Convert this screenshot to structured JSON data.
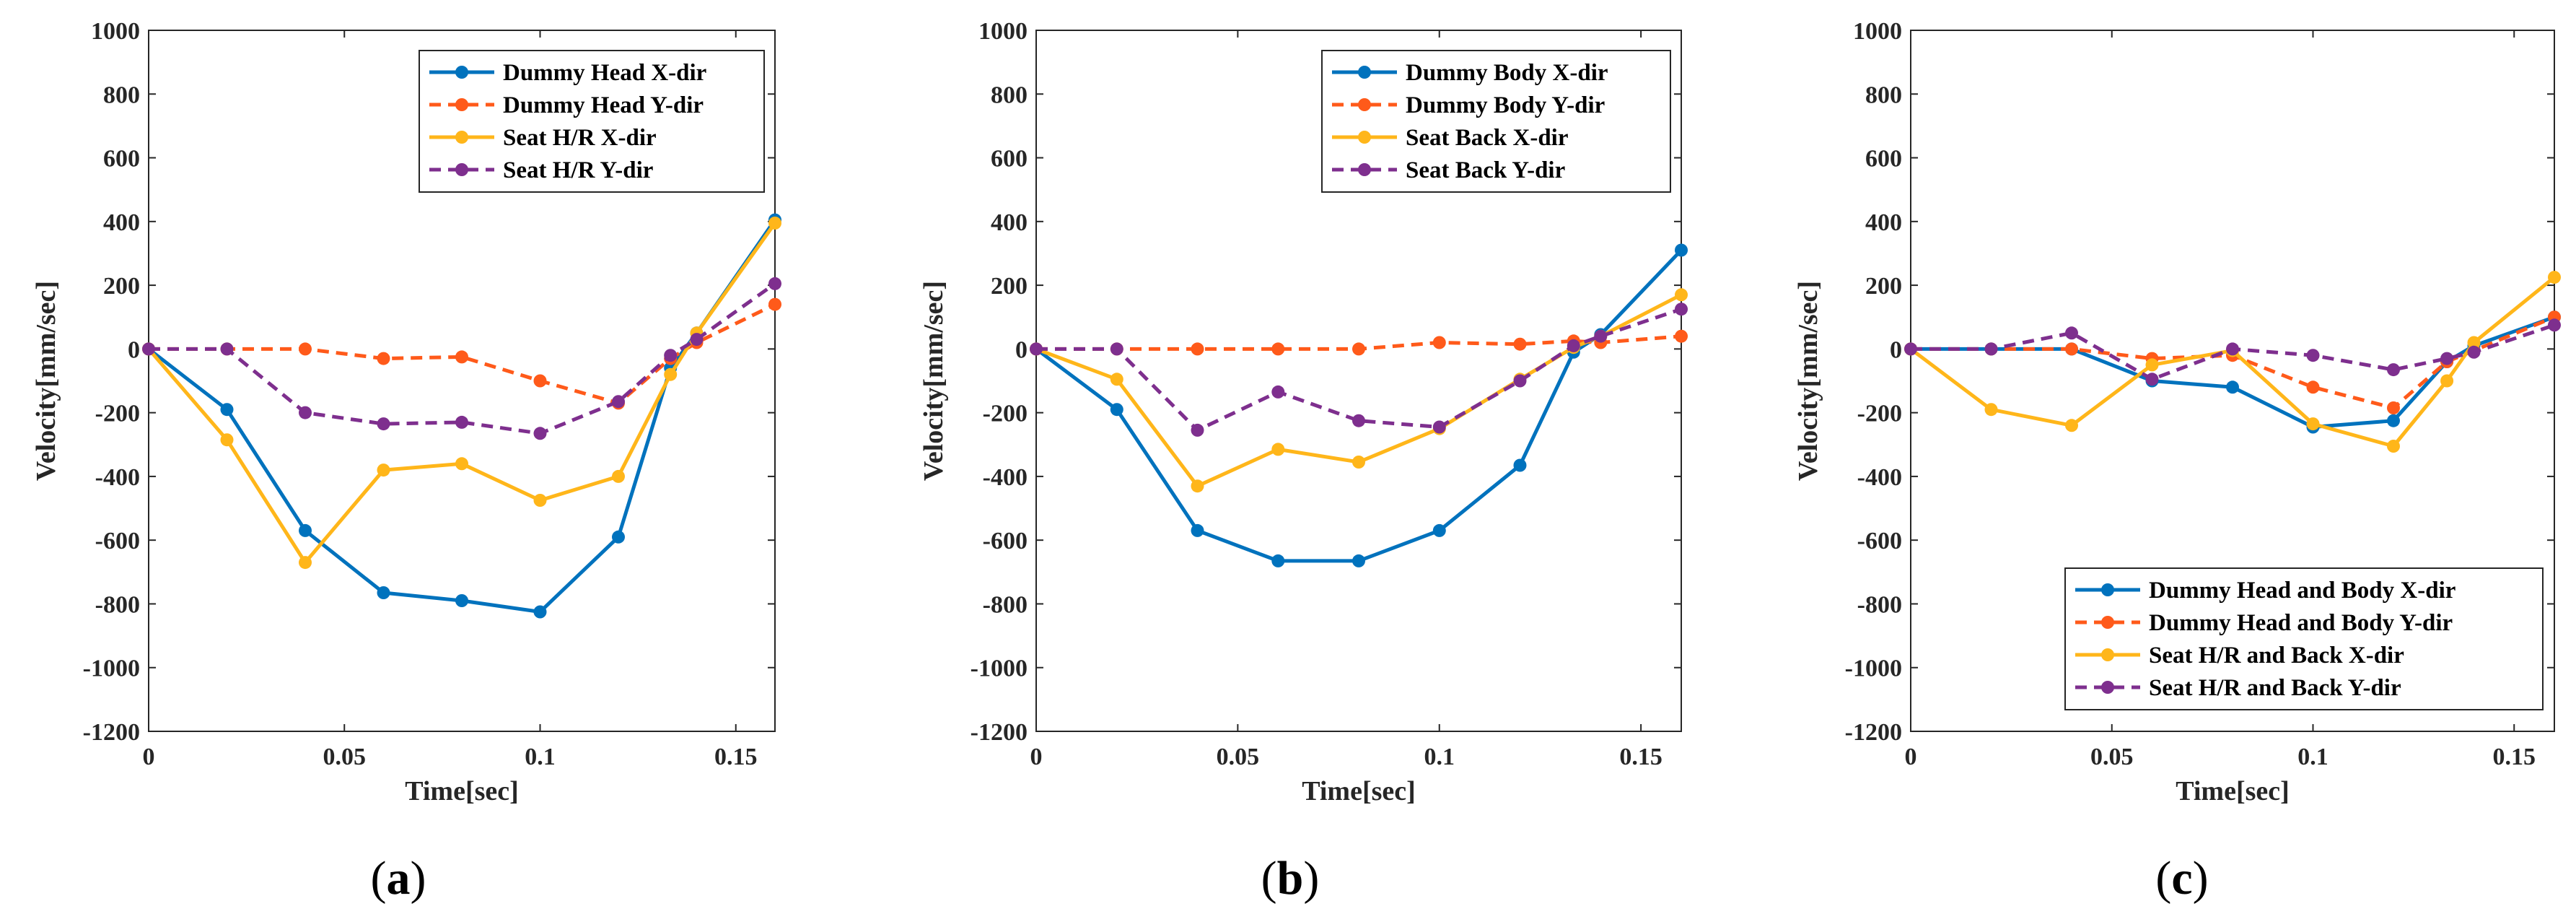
{
  "chart_data": [
    {
      "type": "line",
      "caption": "a",
      "xlabel": "Time[sec]",
      "ylabel": "Velocity[mm/sec]",
      "xlim": [
        0,
        0.16
      ],
      "ylim": [
        -1200,
        1000
      ],
      "xticks": [
        0,
        0.05,
        0.1,
        0.15
      ],
      "xtick_labels": [
        "0",
        "0.05",
        "0.1",
        "0.15"
      ],
      "yticks": [
        1000,
        800,
        600,
        400,
        200,
        0,
        -200,
        -400,
        -600,
        -800,
        -1000,
        -1200
      ],
      "ytick_labels": [
        "1000",
        "800",
        "600",
        "400",
        "200",
        "0",
        "-200",
        "-400",
        "-600",
        "-800",
        "-1000",
        "-1200"
      ],
      "legend_position": "top-right",
      "x": [
        0,
        0.02,
        0.04,
        0.06,
        0.08,
        0.1,
        0.12,
        0.1333,
        0.14,
        0.16
      ],
      "series": [
        {
          "name": "Dummy Head X-dir",
          "color": "#0072BD",
          "dash": "solid",
          "values": [
            0,
            -190,
            -570,
            -765,
            -790,
            -825,
            -590,
            -60,
            50,
            405
          ]
        },
        {
          "name": "Dummy Head Y-dir",
          "color": "#FF5A1A",
          "dash": "dashed",
          "values": [
            0,
            0,
            0,
            -30,
            -25,
            -100,
            -170,
            -30,
            20,
            140
          ]
        },
        {
          "name": "Seat H/R X-dir",
          "color": "#FFB61A",
          "dash": "solid",
          "values": [
            0,
            -285,
            -670,
            -380,
            -360,
            -475,
            -400,
            -80,
            50,
            395
          ]
        },
        {
          "name": "Seat H/R Y-dir",
          "color": "#7E2F8E",
          "dash": "dashed",
          "values": [
            0,
            0,
            -200,
            -235,
            -230,
            -265,
            -165,
            -20,
            30,
            205
          ]
        }
      ]
    },
    {
      "type": "line",
      "caption": "b",
      "xlabel": "Time[sec]",
      "ylabel": "Velocity[mm/sec]",
      "xlim": [
        0,
        0.16
      ],
      "ylim": [
        -1200,
        1000
      ],
      "xticks": [
        0,
        0.05,
        0.1,
        0.15
      ],
      "xtick_labels": [
        "0",
        "0.05",
        "0.1",
        "0.15"
      ],
      "yticks": [
        1000,
        800,
        600,
        400,
        200,
        0,
        -200,
        -400,
        -600,
        -800,
        -1000,
        -1200
      ],
      "ytick_labels": [
        "1000",
        "800",
        "600",
        "400",
        "200",
        "0",
        "-200",
        "-400",
        "-600",
        "-800",
        "-1000",
        "-1200"
      ],
      "legend_position": "top-right",
      "x": [
        0,
        0.02,
        0.04,
        0.06,
        0.08,
        0.1,
        0.12,
        0.1333,
        0.14,
        0.16
      ],
      "series": [
        {
          "name": "Dummy Body X-dir",
          "color": "#0072BD",
          "dash": "solid",
          "values": [
            0,
            -190,
            -570,
            -665,
            -665,
            -570,
            -365,
            -10,
            45,
            310
          ]
        },
        {
          "name": "Dummy Body Y-dir",
          "color": "#FF5A1A",
          "dash": "dashed",
          "values": [
            0,
            0,
            0,
            0,
            0,
            20,
            15,
            25,
            20,
            40
          ]
        },
        {
          "name": "Seat Back X-dir",
          "color": "#FFB61A",
          "dash": "solid",
          "values": [
            0,
            -95,
            -430,
            -315,
            -355,
            -250,
            -95,
            5,
            40,
            170
          ]
        },
        {
          "name": "Seat Back Y-dir",
          "color": "#7E2F8E",
          "dash": "dashed",
          "values": [
            0,
            0,
            -255,
            -135,
            -225,
            -245,
            -100,
            10,
            40,
            125
          ]
        }
      ]
    },
    {
      "type": "line",
      "caption": "c",
      "xlabel": "Time[sec]",
      "ylabel": "Velocity[mm/sec]",
      "xlim": [
        0,
        0.16
      ],
      "ylim": [
        -1200,
        1000
      ],
      "xticks": [
        0,
        0.05,
        0.1,
        0.15
      ],
      "xtick_labels": [
        "0",
        "0.05",
        "0.1",
        "0.15"
      ],
      "yticks": [
        1000,
        800,
        600,
        400,
        200,
        0,
        -200,
        -400,
        -600,
        -800,
        -1000,
        -1200
      ],
      "ytick_labels": [
        "1000",
        "800",
        "600",
        "400",
        "200",
        "0",
        "-200",
        "-400",
        "-600",
        "-800",
        "-1000",
        "-1200"
      ],
      "legend_position": "bottom-right",
      "x": [
        0,
        0.02,
        0.04,
        0.06,
        0.08,
        0.1,
        0.12,
        0.1333,
        0.14,
        0.16
      ],
      "series": [
        {
          "name": "Dummy Head and Body X-dir",
          "color": "#0072BD",
          "dash": "solid",
          "values": [
            0,
            0,
            0,
            -100,
            -120,
            -245,
            -225,
            -40,
            10,
            100
          ]
        },
        {
          "name": "Dummy Head and Body Y-dir",
          "color": "#FF5A1A",
          "dash": "dashed",
          "values": [
            0,
            0,
            0,
            -30,
            -20,
            -120,
            -185,
            -40,
            -5,
            100
          ]
        },
        {
          "name": "Seat H/R and Back X-dir",
          "color": "#FFB61A",
          "dash": "solid",
          "values": [
            0,
            -190,
            -240,
            -50,
            -5,
            -235,
            -305,
            -100,
            20,
            225
          ]
        },
        {
          "name": "Seat H/R and Back Y-dir",
          "color": "#7E2F8E",
          "dash": "dashed",
          "values": [
            0,
            0,
            50,
            -95,
            0,
            -20,
            -65,
            -30,
            -10,
            75
          ]
        }
      ]
    }
  ]
}
